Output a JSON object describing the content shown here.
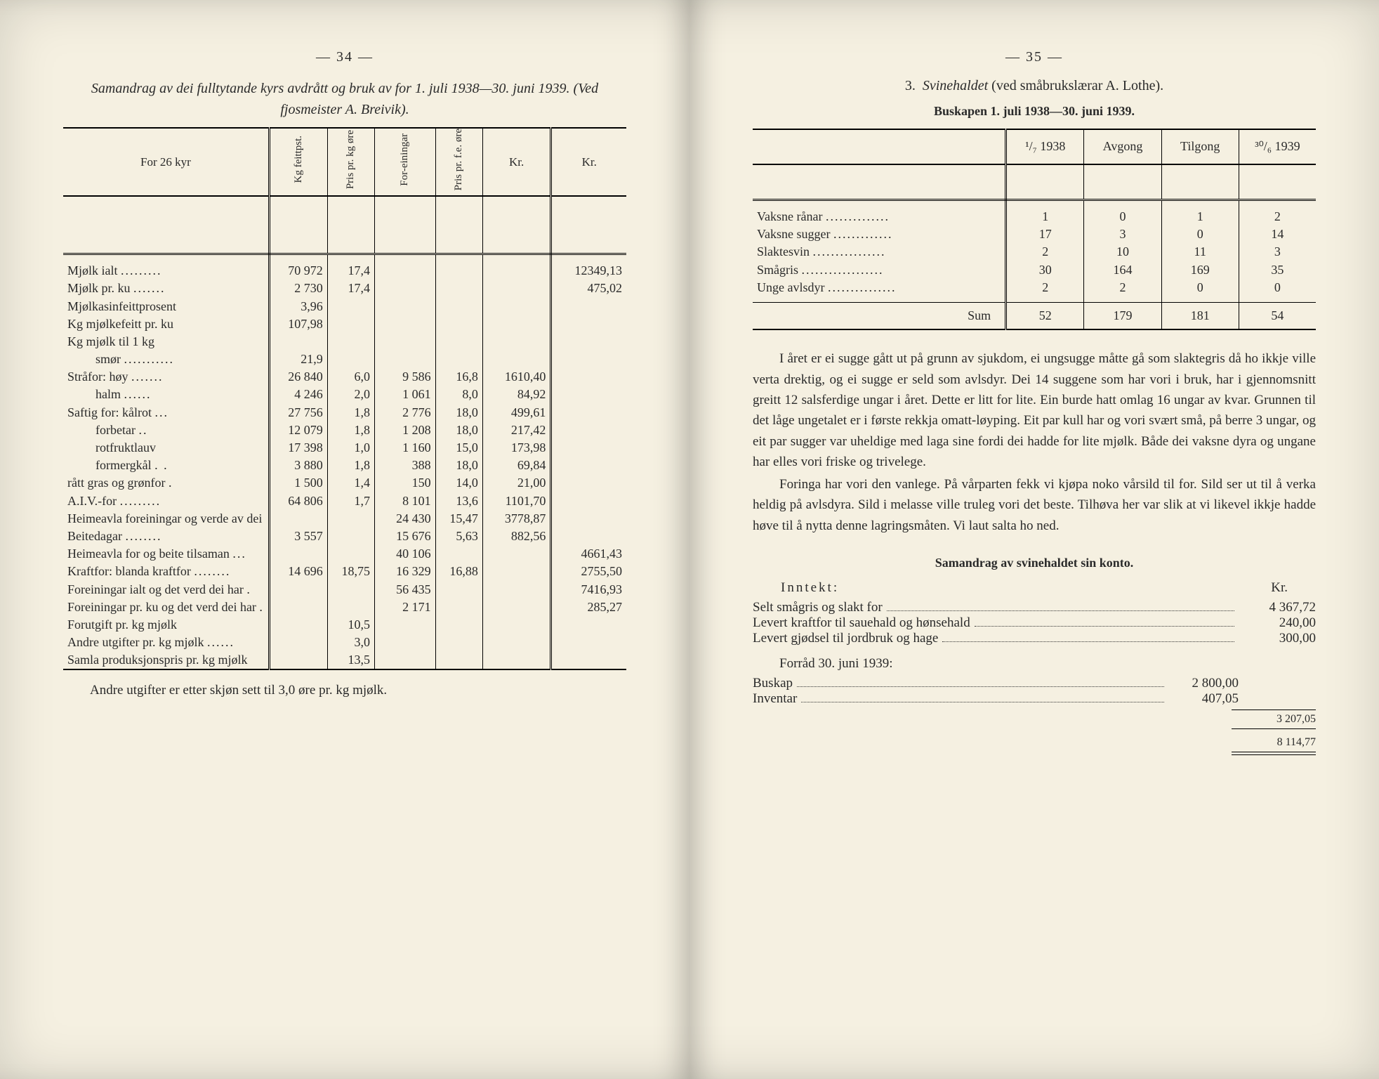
{
  "left": {
    "pageNumber": "— 34 —",
    "title": "Samandrag av dei fulltytande kyrs avdrått og bruk av for 1. juli 1938—30. juni 1939. (Ved fjosmeister A. Breivik).",
    "headers": {
      "c1": "For 26 kyr",
      "c2": "Kg feittpst.",
      "c3": "Pris pr. kg øre",
      "c4": "For-einingar",
      "c5": "Pris pr. f.e. øre",
      "c6": "Kr.",
      "c7": "Kr."
    },
    "rows": [
      {
        "label": "Mjølk ialt",
        "dots": ".........",
        "c2": "70 972",
        "c3": "17,4",
        "c4": "",
        "c5": "",
        "c6": "",
        "c7": "12349,13"
      },
      {
        "label": "Mjølk pr. ku",
        "dots": ".......",
        "c2": "2 730",
        "c3": "17,4",
        "c4": "",
        "c5": "",
        "c6": "",
        "c7": "475,02"
      },
      {
        "label": "Mjølkasinfeittprosent",
        "dots": "",
        "c2": "3,96",
        "c3": "",
        "c4": "",
        "c5": "",
        "c6": "",
        "c7": ""
      },
      {
        "label": "Kg mjølkefeitt pr. ku",
        "dots": "",
        "c2": "107,98",
        "c3": "",
        "c4": "",
        "c5": "",
        "c6": "",
        "c7": ""
      },
      {
        "label": "Kg mjølk til 1 kg",
        "dots": "",
        "c2": "",
        "c3": "",
        "c4": "",
        "c5": "",
        "c6": "",
        "c7": ""
      },
      {
        "label": "smør",
        "sub": true,
        "dots": "...........",
        "c2": "21,9",
        "c3": "",
        "c4": "",
        "c5": "",
        "c6": "",
        "c7": ""
      },
      {
        "label": "Stråfor: høy",
        "dots": ".......",
        "c2": "26 840",
        "c3": "6,0",
        "c4": "9 586",
        "c5": "16,8",
        "c6": "1610,40",
        "c7": ""
      },
      {
        "label": "halm",
        "sub": true,
        "dots": "......",
        "c2": "4 246",
        "c3": "2,0",
        "c4": "1 061",
        "c5": "8,0",
        "c6": "84,92",
        "c7": ""
      },
      {
        "label": "Saftig for: kålrot",
        "dots": "...",
        "c2": "27 756",
        "c3": "1,8",
        "c4": "2 776",
        "c5": "18,0",
        "c6": "499,61",
        "c7": ""
      },
      {
        "label": "forbetar",
        "sub": true,
        "dots": "..",
        "c2": "12 079",
        "c3": "1,8",
        "c4": "1 208",
        "c5": "18,0",
        "c6": "217,42",
        "c7": ""
      },
      {
        "label": "rotfruktlauv",
        "sub": true,
        "dots": "",
        "c2": "17 398",
        "c3": "1,0",
        "c4": "1 160",
        "c5": "15,0",
        "c6": "173,98",
        "c7": ""
      },
      {
        "label": "formergkål",
        "sub": true,
        "dots": ". .",
        "c2": "3 880",
        "c3": "1,8",
        "c4": "388",
        "c5": "18,0",
        "c6": "69,84",
        "c7": ""
      },
      {
        "label": "rått gras og grønfor .",
        "dots": "",
        "c2": "1 500",
        "c3": "1,4",
        "c4": "150",
        "c5": "14,0",
        "c6": "21,00",
        "c7": ""
      },
      {
        "label": "A.I.V.-for",
        "dots": ".........",
        "c2": "64 806",
        "c3": "1,7",
        "c4": "8 101",
        "c5": "13,6",
        "c6": "1101,70",
        "c7": ""
      },
      {
        "label": "Heimeavla foreiningar og verde av dei",
        "wrap": true,
        "dots": "",
        "c2": "",
        "c3": "",
        "c4": "24 430",
        "c5": "15,47",
        "c6": "3778,87",
        "c7": ""
      },
      {
        "label": "Beitedagar",
        "dots": "........",
        "c2": "3 557",
        "c3": "",
        "c4": "15 676",
        "c5": "5,63",
        "c6": "882,56",
        "c7": ""
      },
      {
        "label": "Heimeavla for og beite tilsaman",
        "wrap": true,
        "dots": "...",
        "c2": "",
        "c3": "",
        "c4": "40 106",
        "c5": "",
        "c6": "",
        "c7": "4661,43"
      },
      {
        "label": "Kraftfor: blanda kraftfor",
        "wrap": true,
        "dots": "........",
        "c2": "14 696",
        "c3": "18,75",
        "c4": "16 329",
        "c5": "16,88",
        "c6": "",
        "c7": "2755,50"
      },
      {
        "label": "Foreiningar ialt og det verd dei har .",
        "wrap": true,
        "dots": "",
        "c2": "",
        "c3": "",
        "c4": "56 435",
        "c5": "",
        "c6": "",
        "c7": "7416,93"
      },
      {
        "label": "Foreiningar pr. ku og det verd dei har .",
        "wrap": true,
        "dots": "",
        "c2": "",
        "c3": "",
        "c4": "2 171",
        "c5": "",
        "c6": "",
        "c7": "285,27"
      },
      {
        "label": "Forutgift pr. kg mjølk",
        "dots": "",
        "c2": "",
        "c3": "10,5",
        "c4": "",
        "c5": "",
        "c6": "",
        "c7": ""
      },
      {
        "label": "Andre utgifter pr. kg mjølk",
        "wrap": true,
        "dots": "......",
        "c2": "",
        "c3": "3,0",
        "c4": "",
        "c5": "",
        "c6": "",
        "c7": ""
      },
      {
        "label": "Samla produksjonspris pr. kg mjølk",
        "wrap": true,
        "dots": "",
        "c2": "",
        "c3": "13,5",
        "c4": "",
        "c5": "",
        "c6": "",
        "c7": ""
      }
    ],
    "footnote": "Andre utgifter er etter skjøn sett til 3,0 øre pr. kg mjølk."
  },
  "right": {
    "pageNumber": "— 35 —",
    "section": "3.   Svinehaldet (ved småbrukslærar A. Lothe).",
    "subtitle": "Buskapen 1. juli 1938—30. juni 1939.",
    "headers": {
      "c1": "",
      "c2": "¹/₇ 1938",
      "c3": "Avgong",
      "c4": "Tilgong",
      "c5": "³⁰/₆ 1939"
    },
    "rows": [
      {
        "label": "Vaksne rånar",
        "dots": "..............",
        "c2": "1",
        "c3": "0",
        "c4": "1",
        "c5": "2"
      },
      {
        "label": "Vaksne sugger",
        "dots": ".............",
        "c2": "17",
        "c3": "3",
        "c4": "0",
        "c5": "14"
      },
      {
        "label": "Slaktesvin",
        "dots": "................",
        "c2": "2",
        "c3": "10",
        "c4": "11",
        "c5": "3"
      },
      {
        "label": "Smågris",
        "dots": "..................",
        "c2": "30",
        "c3": "164",
        "c4": "169",
        "c5": "35"
      },
      {
        "label": "Unge avlsdyr",
        "dots": "...............",
        "c2": "2",
        "c3": "2",
        "c4": "0",
        "c5": "0"
      }
    ],
    "sum": {
      "label": "Sum",
      "c2": "52",
      "c3": "179",
      "c4": "181",
      "c5": "54"
    },
    "para1": "I året er ei sugge gått ut på grunn av sjukdom, ei ungsugge måtte gå som slaktegris då ho ikkje ville verta drektig, og ei sugge er seld som avlsdyr. Dei 14 suggene som har vori i bruk, har i gjennomsnitt greitt 12 salsferdige ungar i året. Dette er litt for lite. Ein burde hatt omlag 16 ungar av kvar. Grunnen til det låge ungetalet er i første rekkja omatt-løyping. Eit par kull har og vori svært små, på berre 3 ungar, og eit par sugger var uheldige med laga sine fordi dei hadde for lite mjølk. Både dei vaksne dyra og ungane har elles vori friske og trivelege.",
    "para2": "Foringa har vori den vanlege. På vårparten fekk vi kjøpa noko vårsild til for. Sild ser ut til å verka heldig på avlsdyra. Sild i melasse ville truleg vori det beste. Tilhøva her var slik at vi likevel ikkje hadde høve til å nytta denne lagringsmåten. Vi laut salta ho ned.",
    "kontoTitle": "Samandrag av svinehaldet sin konto.",
    "inntektLabel": "Inntekt:",
    "krLabel": "Kr.",
    "acct": [
      {
        "label": "Selt smågris og slakt for",
        "val": "4 367,72"
      },
      {
        "label": "Levert kraftfor til sauehald og hønsehald",
        "val": "240,00"
      },
      {
        "label": "Levert gjødsel til jordbruk og hage",
        "val": "300,00"
      }
    ],
    "forradLabel": "Forråd 30. juni 1939:",
    "forrad": [
      {
        "label": "Buskap",
        "mid": "2 800,00"
      },
      {
        "label": "Inventar",
        "mid": "407,05"
      }
    ],
    "subtotal": "3 207,05",
    "total": "8 114,77"
  }
}
